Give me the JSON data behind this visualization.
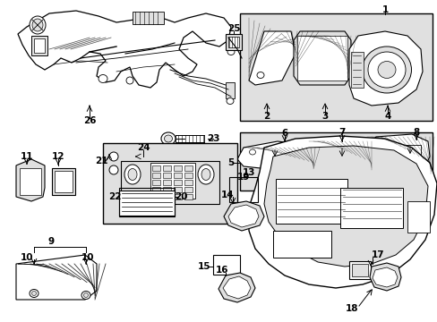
{
  "bg_color": "#ffffff",
  "line_color": "#000000",
  "gray_fill": "#cccccc",
  "light_gray": "#e0e0e0",
  "fig_width": 4.89,
  "fig_height": 3.6,
  "dpi": 100
}
